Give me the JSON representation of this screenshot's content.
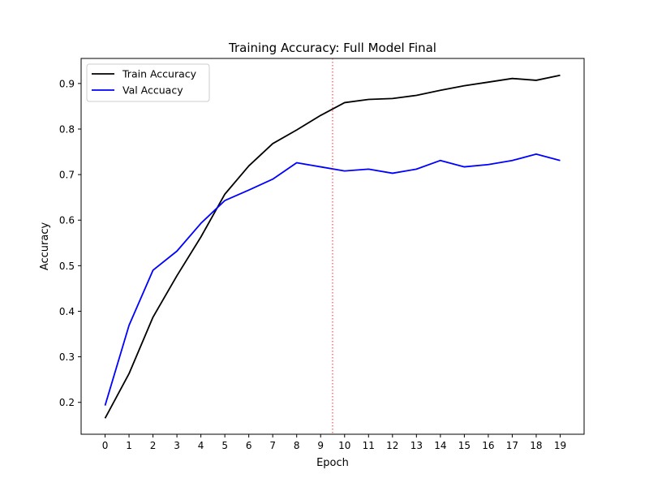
{
  "chart_data": {
    "type": "line",
    "title": "Training Accuracy: Full Model Final",
    "xlabel": "Epoch",
    "ylabel": "Accuracy",
    "x": [
      0,
      1,
      2,
      3,
      4,
      5,
      6,
      7,
      8,
      9,
      10,
      11,
      12,
      13,
      14,
      15,
      16,
      17,
      18,
      19
    ],
    "x_ticks": [
      "0",
      "1",
      "2",
      "3",
      "4",
      "5",
      "6",
      "7",
      "8",
      "9",
      "10",
      "11",
      "12",
      "13",
      "14",
      "15",
      "16",
      "17",
      "18",
      "19"
    ],
    "y_ticks": [
      0.2,
      0.3,
      0.4,
      0.5,
      0.6,
      0.7,
      0.8,
      0.9
    ],
    "y_tick_labels": [
      "0.2",
      "0.3",
      "0.4",
      "0.5",
      "0.6",
      "0.7",
      "0.8",
      "0.9"
    ],
    "xlim": [
      -1,
      20
    ],
    "ylim": [
      0.13,
      0.955
    ],
    "grid": false,
    "legend_position": "top-left",
    "series": [
      {
        "name": "Train Accuracy",
        "color": "#000000",
        "values": [
          0.165,
          0.263,
          0.387,
          0.478,
          0.563,
          0.657,
          0.719,
          0.768,
          0.798,
          0.83,
          0.858,
          0.865,
          0.867,
          0.874,
          0.885,
          0.895,
          0.903,
          0.911,
          0.907,
          0.918
        ]
      },
      {
        "name": "Val Accuacy",
        "color": "#0000ff",
        "values": [
          0.193,
          0.369,
          0.49,
          0.532,
          0.593,
          0.643,
          0.666,
          0.69,
          0.726,
          0.717,
          0.708,
          0.712,
          0.703,
          0.712,
          0.731,
          0.717,
          0.722,
          0.731,
          0.745,
          0.731
        ]
      }
    ],
    "vline": {
      "x": 9.5,
      "color": "#ff0000",
      "style": "dotted"
    }
  }
}
